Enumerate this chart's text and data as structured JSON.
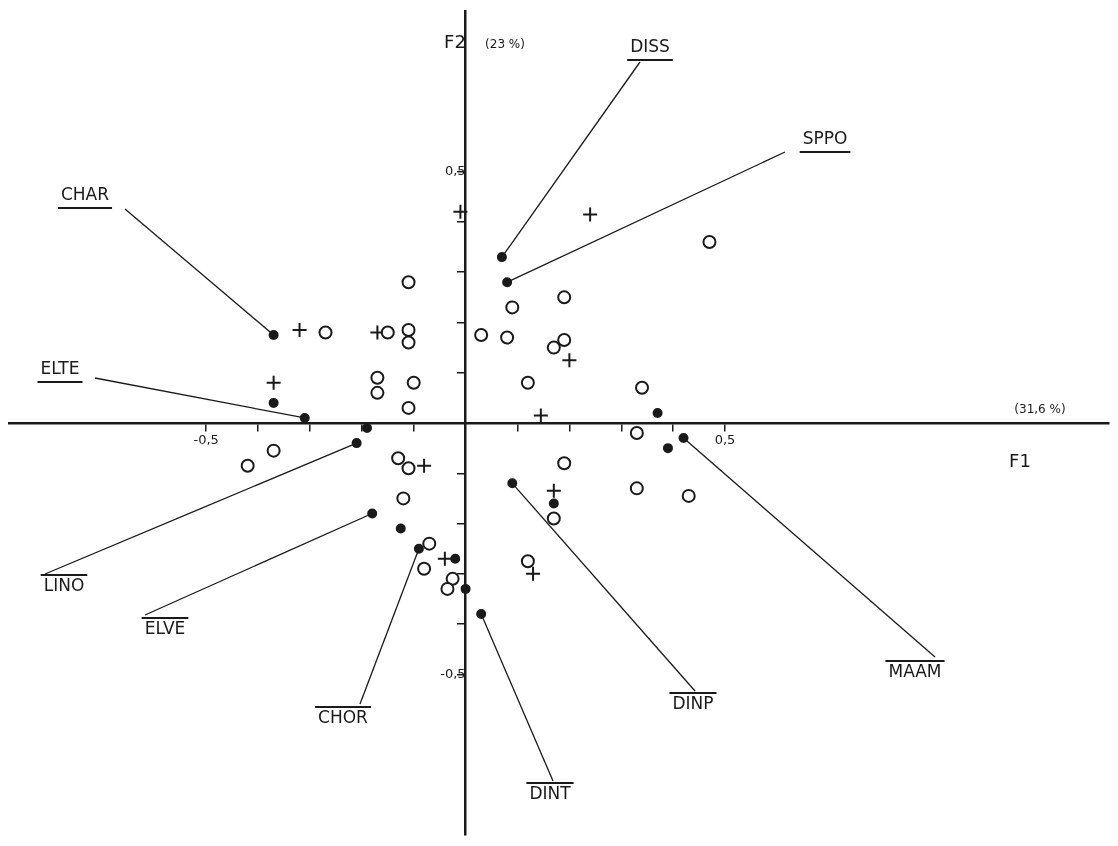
{
  "chart_data": {
    "type": "scatter",
    "xlabel": "F1",
    "ylabel": "F2",
    "grid": false,
    "legend": false,
    "xlim": [
      -0.88,
      1.24
    ],
    "ylim": [
      -0.82,
      0.82
    ],
    "xticks": [
      {
        "value": -0.5,
        "label": "-0,5"
      },
      {
        "value": -0.4,
        "label": null
      },
      {
        "value": -0.3,
        "label": null
      },
      {
        "value": -0.2,
        "label": null
      },
      {
        "value": -0.1,
        "label": null
      },
      {
        "value": 0.1,
        "label": null
      },
      {
        "value": 0.2,
        "label": null
      },
      {
        "value": 0.3,
        "label": null
      },
      {
        "value": 0.4,
        "label": null
      },
      {
        "value": 0.5,
        "label": "0,5"
      }
    ],
    "yticks": [
      {
        "value": -0.5,
        "label": "-0,5"
      },
      {
        "value": -0.4,
        "label": null
      },
      {
        "value": -0.3,
        "label": null
      },
      {
        "value": -0.2,
        "label": null
      },
      {
        "value": -0.1,
        "label": null
      },
      {
        "value": 0.1,
        "label": null
      },
      {
        "value": 0.2,
        "label": null
      },
      {
        "value": 0.3,
        "label": null
      },
      {
        "value": 0.4,
        "label": null
      },
      {
        "value": 0.5,
        "label": "0,5"
      }
    ],
    "annotations": [
      "(31,6 %)",
      "(23 %)",
      {
        "text": "CHAR",
        "x": -0.37,
        "y": 0.175
      },
      {
        "text": "ELTE",
        "x": -0.31,
        "y": 0.01
      },
      {
        "text": "LINO",
        "x": -0.21,
        "y": -0.04
      },
      {
        "text": "ELVE",
        "x": -0.18,
        "y": -0.18
      },
      {
        "text": "CHOR",
        "x": -0.09,
        "y": -0.25
      },
      {
        "text": "DINT",
        "x": 0.03,
        "y": -0.38
      },
      {
        "text": "DINP",
        "x": 0.09,
        "y": -0.12
      },
      {
        "text": "MAAM",
        "x": 0.42,
        "y": -0.03
      },
      {
        "text": "DISS",
        "x": 0.07,
        "y": 0.33
      },
      {
        "text": "SPPO",
        "x": 0.08,
        "y": 0.28
      }
    ],
    "series": [
      {
        "color": "#1a1a1a",
        "marker": "circle",
        "x": [
          -0.37,
          -0.31,
          -0.21,
          -0.18,
          -0.09,
          0.03,
          0.09,
          0.42,
          0.07,
          0.08,
          -0.37,
          0.37,
          0.39,
          0.17,
          -0.125,
          -0.02,
          0,
          -0.19
        ],
        "values": [
          0.175,
          0.01,
          -0.04,
          -0.18,
          -0.25,
          -0.38,
          -0.12,
          -0.03,
          0.33,
          0.28,
          0.04,
          0.02,
          -0.05,
          -0.16,
          -0.21,
          -0.27,
          -0.33,
          -0.01
        ]
      },
      {
        "color": "#1a1a1a",
        "marker": "circle",
        "x": [
          -0.11,
          -0.27,
          -0.15,
          -0.11,
          -0.11,
          0.03,
          -0.17,
          -0.17,
          -0.1,
          -0.11,
          0.47,
          0.19,
          0.09,
          0.08,
          0.17,
          0.19,
          0.12,
          0.34,
          0.33,
          -0.37,
          -0.42,
          -0.13,
          -0.11,
          -0.12,
          -0.07,
          -0.08,
          -0.025,
          -0.035,
          0.19,
          0.33,
          0.43,
          0.17,
          0.12
        ],
        "values": [
          0.28,
          0.18,
          0.18,
          0.185,
          0.16,
          0.175,
          0.09,
          0.06,
          0.08,
          0.03,
          0.36,
          0.25,
          0.23,
          0.17,
          0.15,
          0.165,
          0.08,
          0.07,
          -0.02,
          -0.055,
          -0.085,
          -0.07,
          -0.09,
          -0.15,
          -0.24,
          -0.29,
          -0.31,
          -0.33,
          -0.08,
          -0.13,
          -0.145,
          -0.19,
          -0.275
        ]
      },
      {
        "color": "#1a1a1a",
        "marker": "cross",
        "x": [
          -0.01,
          -0.32,
          -0.17,
          -0.37,
          0.24,
          0.2,
          0.145,
          -0.08,
          -0.04,
          0.17,
          0.13
        ],
        "values": [
          0.42,
          0.185,
          0.18,
          0.08,
          0.415,
          0.125,
          0.015,
          -0.085,
          -0.27,
          -0.135,
          -0.3
        ]
      }
    ]
  }
}
